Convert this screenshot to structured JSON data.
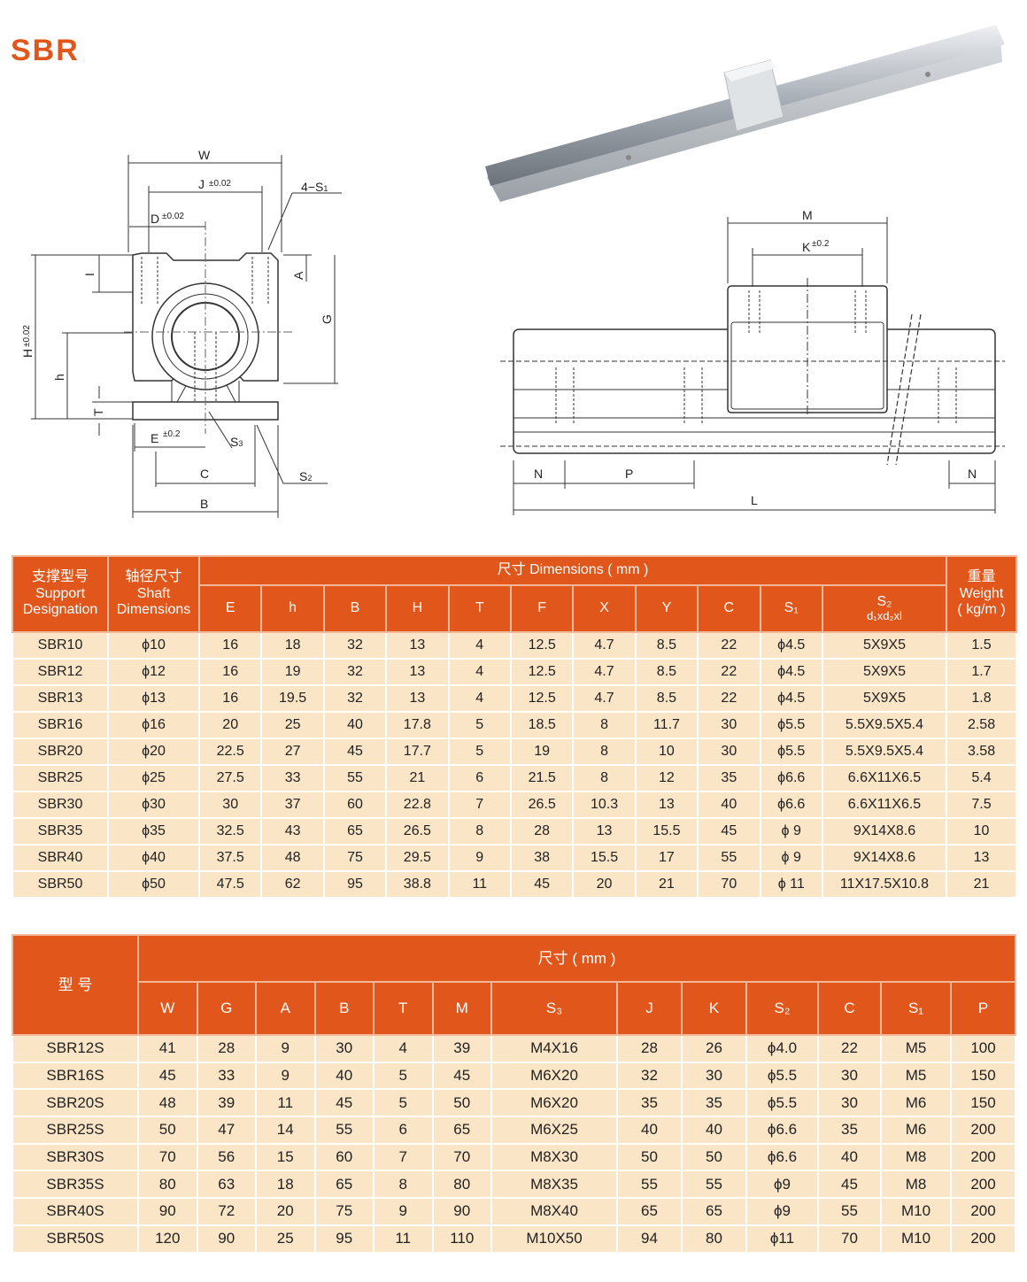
{
  "title": "SBR",
  "colors": {
    "accent": "#e0561b",
    "row_bg": "#fbe5c7"
  },
  "drawing_left": {
    "W": "W",
    "J": "J",
    "J_tol": "±0.02",
    "S1": "4−S",
    "S1_sub": "1",
    "D": "D",
    "D_tol": "±0.02",
    "I": "I",
    "A": "A",
    "G": "G",
    "H": "H",
    "H_tol": "±0.02",
    "h": "h",
    "T": "T",
    "E": "E",
    "E_tol": "±0.2",
    "S3": "S",
    "S3_sub": "3",
    "S2": "S",
    "S2_sub": "2",
    "C": "C",
    "B": "B"
  },
  "drawing_right": {
    "M": "M",
    "K": "K",
    "K_tol": "±0.2",
    "N_left": "N",
    "P": "P",
    "N_right": "N",
    "L": "L"
  },
  "table1": {
    "header": {
      "support_cn": "支撑型号",
      "support_en1": "Support",
      "support_en2": "Designation",
      "shaft_cn": "轴径尺寸",
      "shaft_en1": "Shaft",
      "shaft_en2": "Dimensions",
      "dims": "尺寸  Dimensions ( mm )",
      "weight_cn": "重量",
      "weight_en1": "Weight",
      "weight_en2": "( kg/m )",
      "cols": [
        "E",
        "h",
        "B",
        "H",
        "T",
        "F",
        "X",
        "Y",
        "C",
        "S₁"
      ],
      "s2_top": "S₂",
      "s2_bottom": "d₁xd₂xl"
    },
    "rows": [
      [
        "SBR10",
        "ϕ10",
        "16",
        "18",
        "32",
        "13",
        "4",
        "12.5",
        "4.7",
        "8.5",
        "22",
        "ϕ4.5",
        "5X9X5",
        "1.5"
      ],
      [
        "SBR12",
        "ϕ12",
        "16",
        "19",
        "32",
        "13",
        "4",
        "12.5",
        "4.7",
        "8.5",
        "22",
        "ϕ4.5",
        "5X9X5",
        "1.7"
      ],
      [
        "SBR13",
        "ϕ13",
        "16",
        "19.5",
        "32",
        "13",
        "4",
        "12.5",
        "4.7",
        "8.5",
        "22",
        "ϕ4.5",
        "5X9X5",
        "1.8"
      ],
      [
        "SBR16",
        "ϕ16",
        "20",
        "25",
        "40",
        "17.8",
        "5",
        "18.5",
        "8",
        "11.7",
        "30",
        "ϕ5.5",
        "5.5X9.5X5.4",
        "2.58"
      ],
      [
        "SBR20",
        "ϕ20",
        "22.5",
        "27",
        "45",
        "17.7",
        "5",
        "19",
        "8",
        "10",
        "30",
        "ϕ5.5",
        "5.5X9.5X5.4",
        "3.58"
      ],
      [
        "SBR25",
        "ϕ25",
        "27.5",
        "33",
        "55",
        "21",
        "6",
        "21.5",
        "8",
        "12",
        "35",
        "ϕ6.6",
        "6.6X11X6.5",
        "5.4"
      ],
      [
        "SBR30",
        "ϕ30",
        "30",
        "37",
        "60",
        "22.8",
        "7",
        "26.5",
        "10.3",
        "13",
        "40",
        "ϕ6.6",
        "6.6X11X6.5",
        "7.5"
      ],
      [
        "SBR35",
        "ϕ35",
        "32.5",
        "43",
        "65",
        "26.5",
        "8",
        "28",
        "13",
        "15.5",
        "45",
        "ϕ 9",
        "9X14X8.6",
        "10"
      ],
      [
        "SBR40",
        "ϕ40",
        "37.5",
        "48",
        "75",
        "29.5",
        "9",
        "38",
        "15.5",
        "17",
        "55",
        "ϕ 9",
        "9X14X8.6",
        "13"
      ],
      [
        "SBR50",
        "ϕ50",
        "47.5",
        "62",
        "95",
        "38.8",
        "11",
        "45",
        "20",
        "21",
        "70",
        "ϕ 11",
        "11X17.5X10.8",
        "21"
      ]
    ]
  },
  "table2": {
    "header": {
      "model": "型  号",
      "dims": "尺寸 ( mm )",
      "cols": [
        "W",
        "G",
        "A",
        "B",
        "T",
        "M",
        "S₃",
        "J",
        "K",
        "S₂",
        "C",
        "S₁",
        "P"
      ]
    },
    "rows": [
      [
        "SBR12S",
        "41",
        "28",
        "9",
        "30",
        "4",
        "39",
        "M4X16",
        "28",
        "26",
        "ϕ4.0",
        "22",
        "M5",
        "100"
      ],
      [
        "SBR16S",
        "45",
        "33",
        "9",
        "40",
        "5",
        "45",
        "M6X20",
        "32",
        "30",
        "ϕ5.5",
        "30",
        "M5",
        "150"
      ],
      [
        "SBR20S",
        "48",
        "39",
        "11",
        "45",
        "5",
        "50",
        "M6X20",
        "35",
        "35",
        "ϕ5.5",
        "30",
        "M6",
        "150"
      ],
      [
        "SBR25S",
        "50",
        "47",
        "14",
        "55",
        "6",
        "65",
        "M6X25",
        "40",
        "40",
        "ϕ6.6",
        "35",
        "M6",
        "200"
      ],
      [
        "SBR30S",
        "70",
        "56",
        "15",
        "60",
        "7",
        "70",
        "M8X30",
        "50",
        "50",
        "ϕ6.6",
        "40",
        "M8",
        "200"
      ],
      [
        "SBR35S",
        "80",
        "63",
        "18",
        "65",
        "8",
        "80",
        "M8X35",
        "55",
        "55",
        "ϕ9",
        "45",
        "M8",
        "200"
      ],
      [
        "SBR40S",
        "90",
        "72",
        "20",
        "75",
        "9",
        "90",
        "M8X40",
        "65",
        "65",
        "ϕ9",
        "55",
        "M10",
        "200"
      ],
      [
        "SBR50S",
        "120",
        "90",
        "25",
        "95",
        "11",
        "110",
        "M10X50",
        "94",
        "80",
        "ϕ11",
        "70",
        "M10",
        "200"
      ]
    ]
  }
}
